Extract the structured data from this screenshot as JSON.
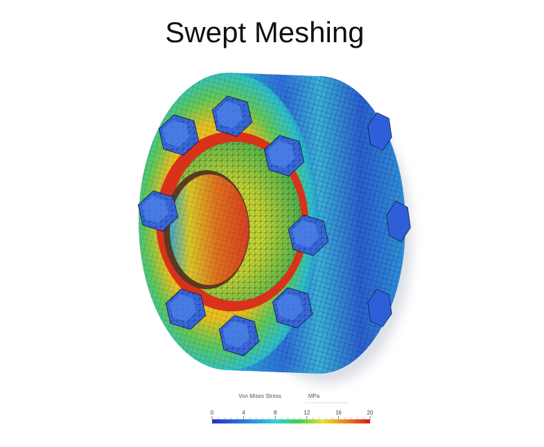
{
  "title": "Swept Meshing",
  "legend": {
    "label": "Von Mises Stress",
    "unit": "MPa",
    "range": [
      0,
      20
    ],
    "ticks": [
      0,
      4,
      8,
      12,
      16,
      20
    ]
  }
}
